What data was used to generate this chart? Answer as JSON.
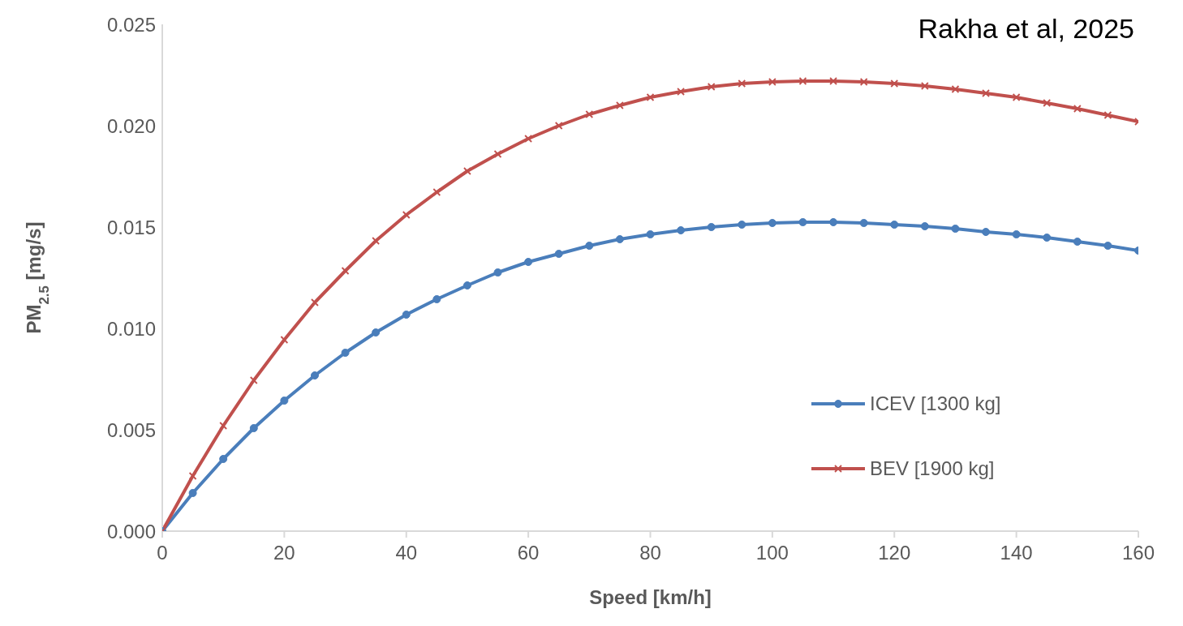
{
  "chart_data": {
    "type": "line",
    "annotations": [
      "Rakha et al, 2025"
    ],
    "xlabel": "Speed [km/h]",
    "ylabel": "PM$_{2.5}$ [mg/s]",
    "x": [
      0,
      5,
      10,
      15,
      20,
      25,
      30,
      35,
      40,
      45,
      50,
      55,
      60,
      65,
      70,
      75,
      80,
      85,
      90,
      95,
      100,
      105,
      110,
      115,
      120,
      125,
      130,
      135,
      140,
      145,
      150,
      155,
      160
    ],
    "series": [
      {
        "name": "ICEV [1300 kg]",
        "color": "#4a7ebb",
        "marker": "circle",
        "values": [
          0,
          0.00188,
          0.00356,
          0.00508,
          0.00644,
          0.00768,
          0.0088,
          0.0098,
          0.01068,
          0.01144,
          0.01212,
          0.01276,
          0.01328,
          0.01368,
          0.01408,
          0.0144,
          0.01464,
          0.01484,
          0.015,
          0.01512,
          0.0152,
          0.01524,
          0.01524,
          0.0152,
          0.01512,
          0.01504,
          0.01492,
          0.01476,
          0.01464,
          0.01448,
          0.01428,
          0.01408,
          0.01384
        ]
      },
      {
        "name": "BEV [1900 kg]",
        "color": "#c0504d",
        "marker": "cross",
        "values": [
          0,
          0.00272,
          0.0052,
          0.00744,
          0.00944,
          0.01128,
          0.01284,
          0.01432,
          0.0156,
          0.01672,
          0.01776,
          0.0186,
          0.01936,
          0.02,
          0.02056,
          0.021,
          0.0214,
          0.02168,
          0.02192,
          0.02208,
          0.02216,
          0.0222,
          0.0222,
          0.02216,
          0.02208,
          0.02196,
          0.0218,
          0.0216,
          0.0214,
          0.02112,
          0.02084,
          0.02052,
          0.0202
        ]
      }
    ],
    "xlim": [
      0,
      160
    ],
    "xticks": [
      0,
      20,
      40,
      60,
      80,
      100,
      120,
      140,
      160
    ],
    "ylim": [
      0,
      0.025
    ],
    "yticks": [
      {
        "value": 0,
        "label": "0.000"
      },
      {
        "value": 0.005,
        "label": "0.005"
      },
      {
        "value": 0.01,
        "label": "0.010"
      },
      {
        "value": 0.015,
        "label": "0.015"
      },
      {
        "value": 0.02,
        "label": "0.020"
      },
      {
        "value": 0.025,
        "label": "0.025"
      }
    ],
    "legend": "bottom right"
  }
}
